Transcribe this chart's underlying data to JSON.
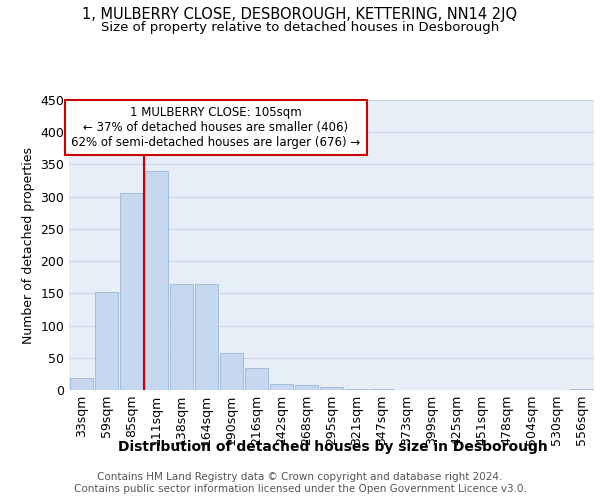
{
  "title1": "1, MULBERRY CLOSE, DESBOROUGH, KETTERING, NN14 2JQ",
  "title2": "Size of property relative to detached houses in Desborough",
  "xlabel": "Distribution of detached houses by size in Desborough",
  "ylabel": "Number of detached properties",
  "categories": [
    "33sqm",
    "59sqm",
    "85sqm",
    "111sqm",
    "138sqm",
    "164sqm",
    "190sqm",
    "216sqm",
    "242sqm",
    "268sqm",
    "295sqm",
    "321sqm",
    "347sqm",
    "373sqm",
    "399sqm",
    "425sqm",
    "451sqm",
    "478sqm",
    "504sqm",
    "530sqm",
    "556sqm"
  ],
  "values": [
    18,
    152,
    306,
    340,
    165,
    165,
    57,
    34,
    10,
    7,
    4,
    2,
    1,
    0,
    0,
    0,
    0,
    0,
    0,
    0,
    2
  ],
  "bar_color": "#c5d8ef",
  "bar_edge_color": "#9ab8d8",
  "vline_x_index": 2.5,
  "vline_color": "#cc0000",
  "annotation_line1": "1 MULBERRY CLOSE: 105sqm",
  "annotation_line2": "← 37% of detached houses are smaller (406)",
  "annotation_line3": "62% of semi-detached houses are larger (676) →",
  "annotation_box_color": "#cc0000",
  "ylim": [
    0,
    450
  ],
  "yticks": [
    0,
    50,
    100,
    150,
    200,
    250,
    300,
    350,
    400,
    450
  ],
  "grid_color": "#c8d4e8",
  "bg_color": "#e8eef8",
  "footer1": "Contains HM Land Registry data © Crown copyright and database right 2024.",
  "footer2": "Contains public sector information licensed under the Open Government Licence v3.0.",
  "title1_fontsize": 10.5,
  "title2_fontsize": 9.5,
  "xlabel_fontsize": 10,
  "ylabel_fontsize": 9,
  "tick_fontsize": 9,
  "annotation_fontsize": 8.5,
  "footer_fontsize": 7.5
}
